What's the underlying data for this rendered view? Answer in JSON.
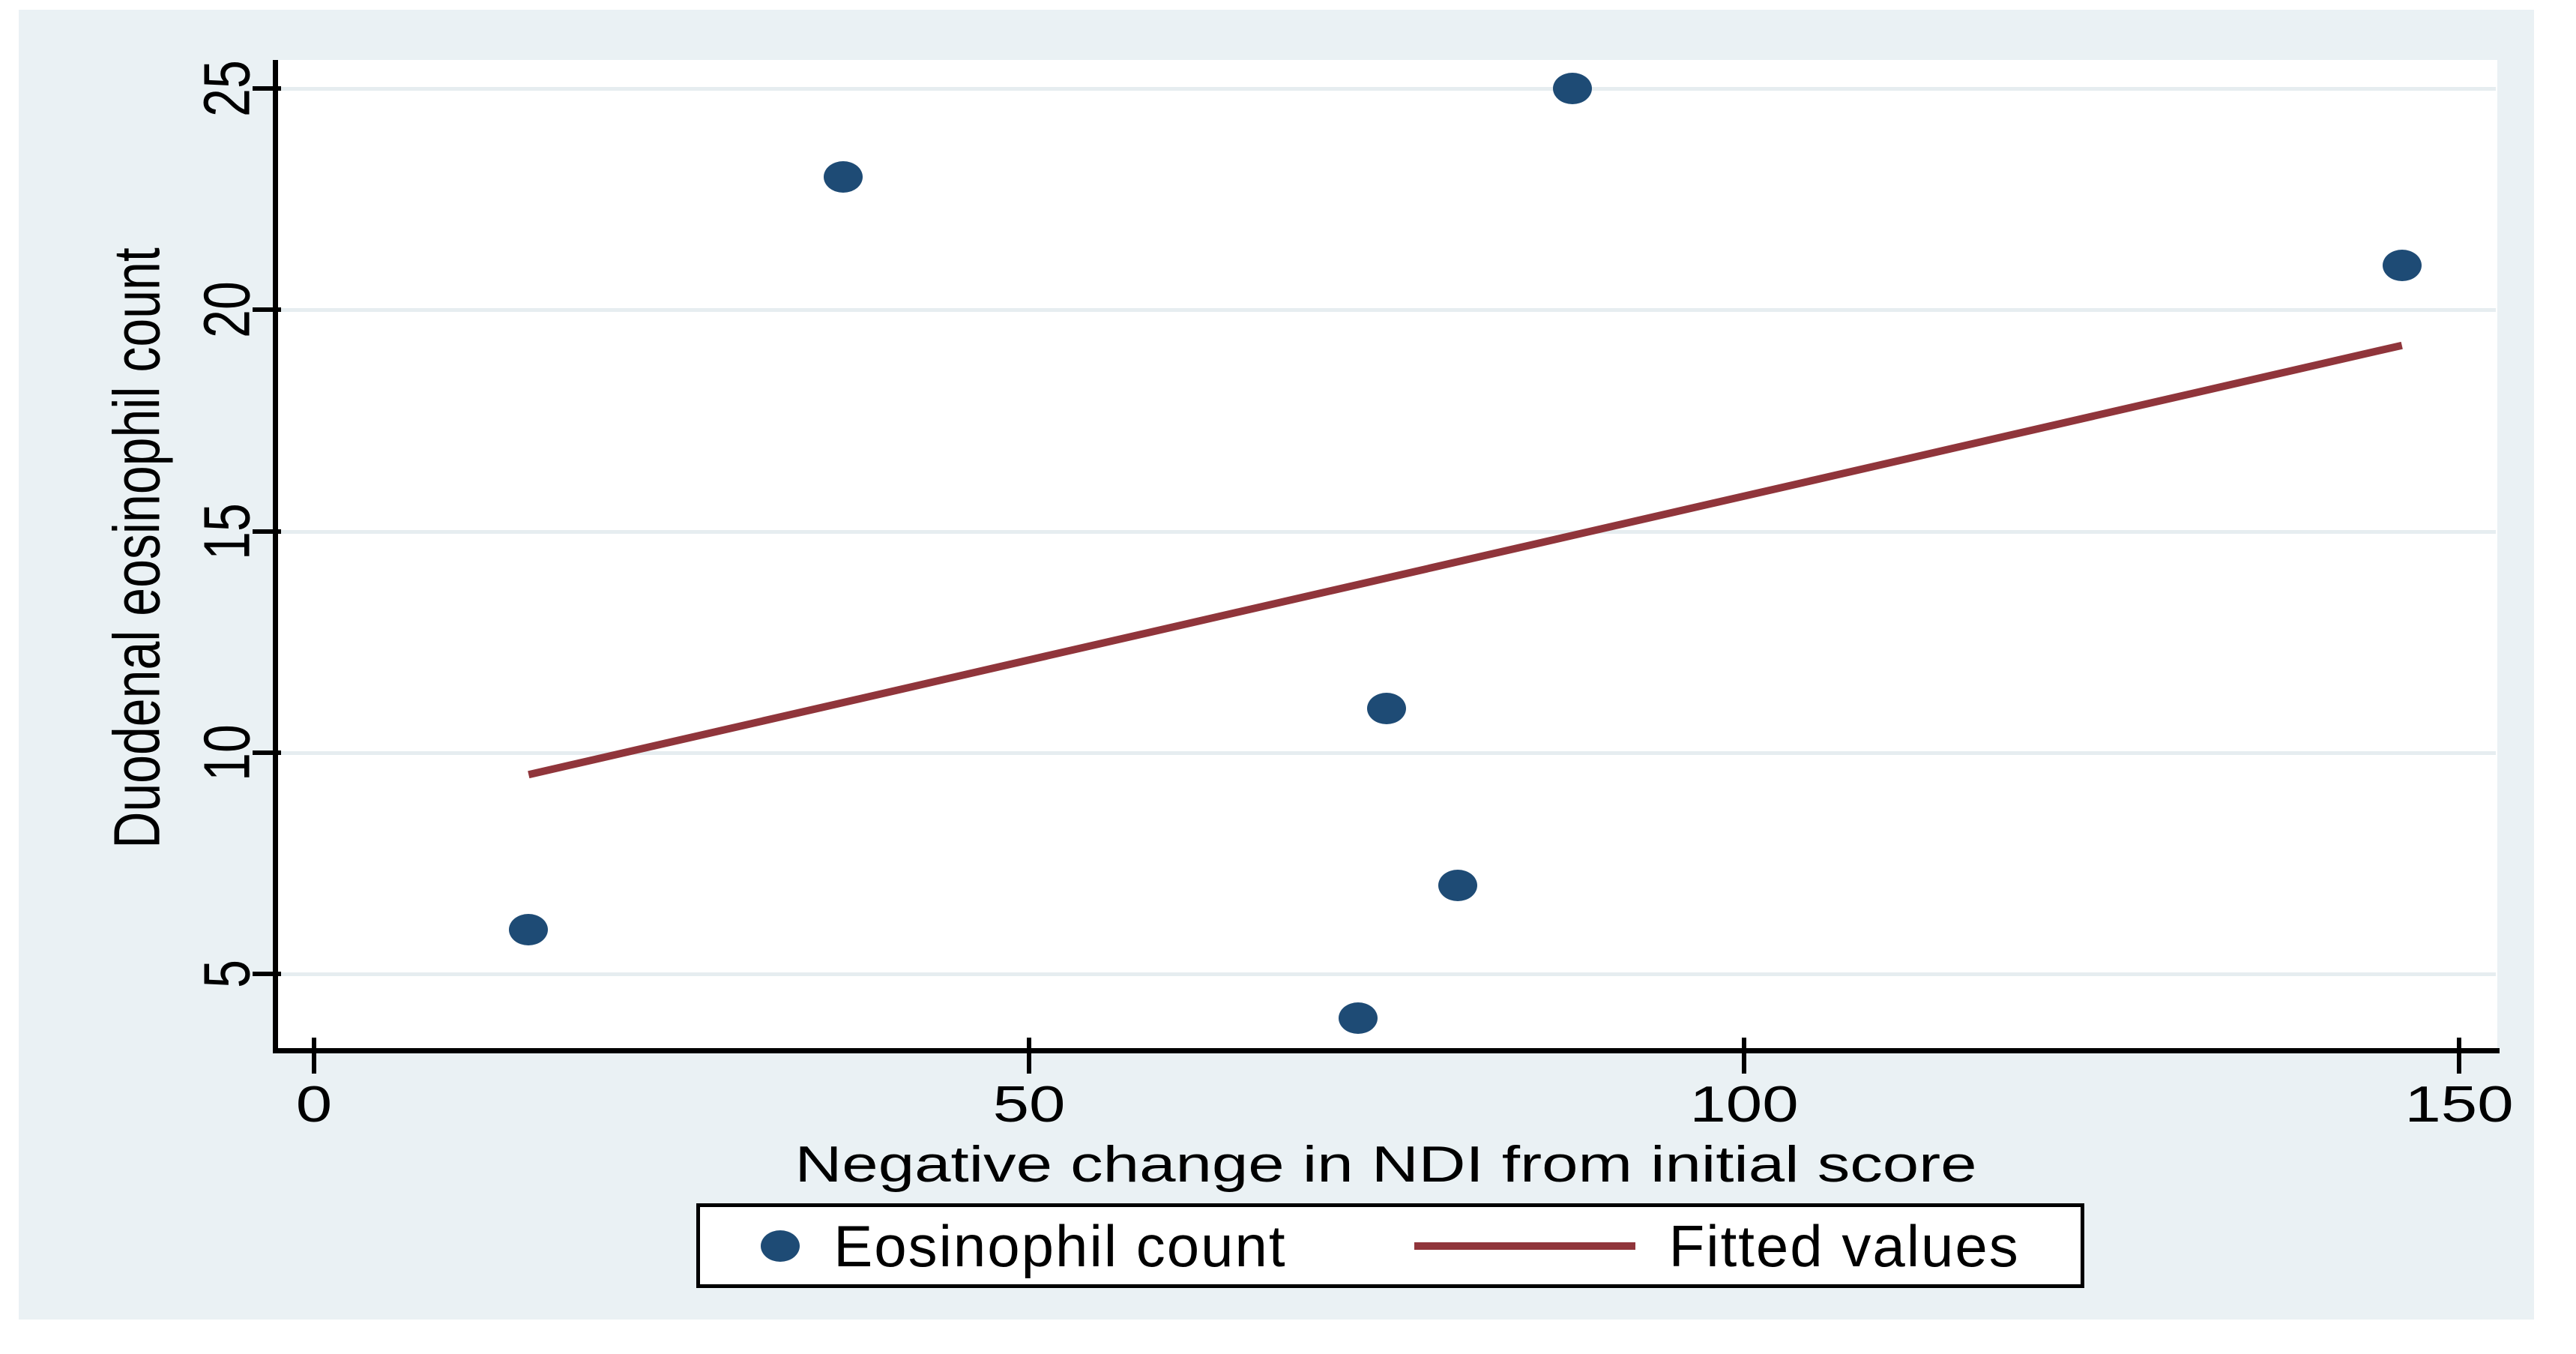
{
  "chart_data": {
    "type": "scatter",
    "title": "",
    "xlabel": "Negative change in NDI from initial score",
    "ylabel": "Duodenal eosinophil count",
    "xlim": [
      -2.73,
      152.67
    ],
    "ylim": [
      3.32,
      25.65
    ],
    "x_tick_values": [
      0,
      50,
      100,
      150
    ],
    "x_tick_labels": [
      "0",
      "50",
      "100",
      "150"
    ],
    "y_tick_values": [
      5,
      10,
      15,
      20,
      25
    ],
    "y_tick_labels": [
      "5",
      "10",
      "15",
      "20",
      "25"
    ],
    "grid": "horizontal-only",
    "legend_position": "bottom-center",
    "series": [
      {
        "name": "Eosinophil count",
        "type": "scatter",
        "marker": "filled-circle",
        "color": "#1e4b75",
        "points": [
          {
            "x": 15,
            "y": 6
          },
          {
            "x": 37,
            "y": 23
          },
          {
            "x": 73,
            "y": 4
          },
          {
            "x": 75,
            "y": 11
          },
          {
            "x": 80,
            "y": 7
          },
          {
            "x": 88,
            "y": 25
          },
          {
            "x": 146,
            "y": 21
          }
        ]
      },
      {
        "name": "Fitted values",
        "type": "line",
        "color": "#90353b",
        "points": [
          {
            "x": 15,
            "y": 9.5
          },
          {
            "x": 146,
            "y": 19.2
          }
        ]
      }
    ]
  },
  "legend": {
    "items": [
      {
        "label": "Eosinophil count",
        "marker": "dot",
        "color": "#1e4b75"
      },
      {
        "label": "Fitted values",
        "marker": "line",
        "color": "#90353b"
      }
    ]
  },
  "colors": {
    "page_background": "#ffffff",
    "graph_background": "#eaf1f4",
    "plot_background": "#ffffff",
    "gridline": "#e6edf0",
    "axis": "#000000",
    "text": "#000000",
    "scatter_point": "#1e4b75",
    "fitted_line": "#90353b",
    "legend_background": "#ffffff",
    "legend_border": "#000000"
  }
}
